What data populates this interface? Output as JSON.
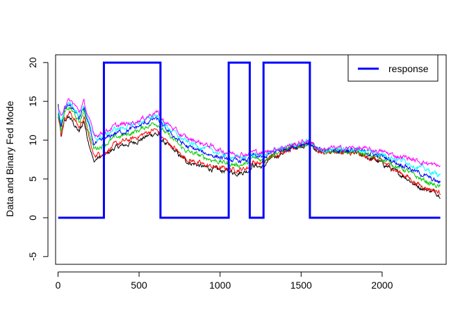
{
  "chart_data": {
    "type": "line",
    "title": "",
    "xlabel": "",
    "ylabel": "Data and Binary Fed Mode",
    "xlim": [
      -15,
      2395
    ],
    "ylim": [
      -6,
      21
    ],
    "x_ticks": [
      0,
      500,
      1000,
      1500,
      2000
    ],
    "y_ticks": [
      -5,
      0,
      5,
      10,
      15,
      20
    ],
    "grid": false,
    "legend": {
      "position": "top-right",
      "entries": [
        {
          "label": "response",
          "color": "#0000ff"
        }
      ]
    },
    "series": [
      {
        "name": "response",
        "color": "#0000ff",
        "width": 3,
        "x": [
          1,
          283,
          283,
          632,
          632,
          1053,
          1053,
          1183,
          1183,
          1268,
          1268,
          1554,
          1554,
          2359
        ],
        "y": [
          0,
          0,
          20,
          20,
          0,
          0,
          20,
          20,
          0,
          0,
          20,
          20,
          0,
          0
        ]
      },
      {
        "color": "#000000",
        "x": [
          1,
          20,
          40,
          70,
          100,
          130,
          160,
          180,
          200,
          220,
          240,
          260,
          283,
          300,
          350,
          400,
          450,
          500,
          550,
          600,
          632,
          640,
          700,
          750,
          800,
          850,
          900,
          950,
          1000,
          1053,
          1100,
          1150,
          1183,
          1200,
          1268,
          1300,
          1350,
          1400,
          1450,
          1500,
          1554,
          1600,
          1650,
          1700,
          1750,
          1800,
          1850,
          1900,
          1950,
          2000,
          2050,
          2100,
          2150,
          2200,
          2250,
          2300,
          2359
        ],
        "y": [
          14.6,
          10.2,
          12.5,
          13.0,
          12.0,
          11.0,
          12.5,
          10.5,
          9.0,
          7.2,
          7.6,
          7.8,
          8.0,
          8.2,
          9.0,
          9.3,
          9.6,
          10.0,
          10.5,
          10.9,
          10.4,
          10.0,
          9.0,
          8.0,
          7.2,
          6.9,
          6.5,
          6.3,
          6.1,
          6.0,
          5.8,
          5.9,
          6.2,
          6.8,
          6.5,
          7.4,
          8.0,
          8.5,
          9.0,
          9.3,
          9.6,
          8.6,
          8.4,
          8.6,
          8.4,
          8.3,
          8.2,
          7.8,
          7.5,
          7.0,
          6.4,
          5.7,
          5.2,
          4.3,
          3.8,
          3.5,
          3.0
        ]
      },
      {
        "color": "#ff0000",
        "x": [
          1,
          20,
          40,
          70,
          100,
          130,
          160,
          180,
          200,
          220,
          240,
          260,
          283,
          300,
          350,
          400,
          450,
          500,
          550,
          600,
          632,
          640,
          700,
          750,
          800,
          850,
          900,
          950,
          1000,
          1053,
          1100,
          1150,
          1183,
          1200,
          1268,
          1300,
          1350,
          1400,
          1450,
          1500,
          1554,
          1600,
          1650,
          1700,
          1750,
          1800,
          1850,
          1900,
          1950,
          2000,
          2050,
          2100,
          2150,
          2200,
          2250,
          2300,
          2359
        ],
        "y": [
          13.0,
          10.6,
          12.8,
          13.6,
          12.8,
          11.6,
          13.0,
          11.2,
          9.6,
          8.0,
          8.2,
          8.3,
          8.4,
          8.6,
          9.4,
          9.8,
          10.1,
          10.5,
          11.0,
          11.4,
          10.8,
          10.4,
          9.3,
          8.3,
          7.5,
          7.2,
          6.8,
          6.6,
          6.4,
          6.3,
          6.2,
          6.3,
          6.6,
          7.2,
          6.9,
          7.7,
          8.2,
          8.7,
          9.1,
          9.4,
          9.6,
          8.6,
          8.4,
          8.6,
          8.4,
          8.3,
          8.2,
          7.8,
          7.6,
          7.2,
          6.6,
          5.9,
          5.4,
          4.6,
          4.0,
          3.7,
          3.2
        ]
      },
      {
        "color": "#00cd00",
        "x": [
          1,
          20,
          40,
          70,
          100,
          130,
          160,
          180,
          200,
          220,
          240,
          260,
          283,
          300,
          350,
          400,
          450,
          500,
          550,
          600,
          632,
          640,
          700,
          750,
          800,
          850,
          900,
          950,
          1000,
          1053,
          1100,
          1150,
          1183,
          1200,
          1268,
          1300,
          1350,
          1400,
          1450,
          1500,
          1554,
          1600,
          1650,
          1700,
          1750,
          1800,
          1850,
          1900,
          1950,
          2000,
          2050,
          2100,
          2150,
          2200,
          2250,
          2300,
          2359
        ],
        "y": [
          13.6,
          11.2,
          13.4,
          14.2,
          13.4,
          12.2,
          13.7,
          12.0,
          10.4,
          8.9,
          9.0,
          9.2,
          9.4,
          9.6,
          10.3,
          10.6,
          10.9,
          11.3,
          11.8,
          12.3,
          11.8,
          11.4,
          10.3,
          9.3,
          8.5,
          8.2,
          7.8,
          7.5,
          7.2,
          7.0,
          6.8,
          6.9,
          7.2,
          7.7,
          7.4,
          8.0,
          8.4,
          8.8,
          9.1,
          9.4,
          9.6,
          8.7,
          8.5,
          8.7,
          8.6,
          8.5,
          8.4,
          8.1,
          7.9,
          7.6,
          7.1,
          6.5,
          6.1,
          5.4,
          4.9,
          4.4,
          3.9
        ]
      },
      {
        "color": "#0000ff",
        "x": [
          1,
          20,
          40,
          70,
          100,
          130,
          160,
          180,
          200,
          220,
          240,
          260,
          283,
          300,
          350,
          400,
          450,
          500,
          550,
          600,
          632,
          640,
          700,
          750,
          800,
          850,
          900,
          950,
          1000,
          1053,
          1100,
          1150,
          1183,
          1200,
          1268,
          1300,
          1350,
          1400,
          1450,
          1500,
          1554,
          1600,
          1650,
          1700,
          1750,
          1800,
          1850,
          1900,
          1950,
          2000,
          2050,
          2100,
          2150,
          2200,
          2250,
          2300,
          2359
        ],
        "y": [
          14.0,
          11.8,
          13.9,
          14.6,
          13.9,
          12.8,
          14.2,
          12.6,
          11.0,
          9.6,
          9.6,
          9.8,
          10.0,
          10.2,
          10.9,
          11.1,
          11.4,
          11.8,
          12.3,
          12.8,
          12.3,
          11.9,
          10.8,
          9.9,
          9.1,
          8.8,
          8.4,
          8.1,
          7.8,
          7.5,
          7.3,
          7.4,
          7.6,
          8.0,
          7.7,
          8.2,
          8.6,
          8.9,
          9.2,
          9.5,
          9.7,
          8.7,
          8.6,
          8.8,
          8.7,
          8.7,
          8.6,
          8.4,
          8.2,
          7.9,
          7.5,
          7.0,
          6.7,
          6.0,
          5.6,
          5.0,
          4.5
        ]
      },
      {
        "color": "#00ffff",
        "x": [
          1,
          20,
          40,
          70,
          100,
          130,
          160,
          180,
          200,
          220,
          240,
          260,
          283,
          300,
          350,
          400,
          450,
          500,
          550,
          600,
          632,
          640,
          700,
          750,
          800,
          850,
          900,
          950,
          1000,
          1053,
          1100,
          1150,
          1183,
          1200,
          1268,
          1300,
          1350,
          1400,
          1450,
          1500,
          1554,
          1600,
          1650,
          1700,
          1750,
          1800,
          1850,
          1900,
          1950,
          2000,
          2050,
          2100,
          2150,
          2200,
          2250,
          2300,
          2359
        ],
        "y": [
          14.2,
          12.3,
          14.3,
          14.9,
          14.3,
          13.3,
          14.6,
          13.1,
          11.6,
          10.3,
          10.2,
          10.4,
          10.6,
          10.8,
          11.4,
          11.6,
          11.9,
          12.3,
          12.7,
          13.3,
          12.8,
          12.3,
          11.3,
          10.4,
          9.7,
          9.4,
          9.0,
          8.7,
          8.3,
          8.0,
          7.8,
          7.8,
          8.0,
          8.3,
          8.0,
          8.4,
          8.8,
          9.1,
          9.3,
          9.6,
          9.8,
          8.8,
          8.7,
          8.9,
          8.8,
          8.9,
          8.8,
          8.6,
          8.5,
          8.2,
          7.9,
          7.5,
          7.3,
          6.7,
          6.4,
          5.9,
          5.5
        ]
      },
      {
        "color": "#ff00ff",
        "x": [
          1,
          20,
          40,
          70,
          100,
          130,
          160,
          180,
          200,
          220,
          240,
          260,
          283,
          300,
          350,
          400,
          450,
          500,
          550,
          600,
          632,
          640,
          700,
          750,
          800,
          850,
          900,
          950,
          1000,
          1053,
          1100,
          1150,
          1183,
          1200,
          1268,
          1300,
          1350,
          1400,
          1450,
          1500,
          1554,
          1600,
          1650,
          1700,
          1750,
          1800,
          1850,
          1900,
          1950,
          2000,
          2050,
          2100,
          2150,
          2200,
          2250,
          2300,
          2359
        ],
        "y": [
          14.4,
          12.7,
          14.6,
          15.1,
          14.6,
          13.7,
          14.9,
          13.5,
          12.1,
          10.8,
          10.7,
          10.9,
          11.0,
          11.2,
          11.8,
          12.0,
          12.2,
          12.6,
          13.0,
          13.7,
          13.2,
          12.7,
          11.7,
          10.8,
          10.2,
          9.9,
          9.5,
          9.2,
          8.7,
          8.4,
          8.2,
          8.2,
          8.3,
          8.6,
          8.3,
          8.6,
          8.9,
          9.2,
          9.4,
          9.7,
          9.9,
          8.9,
          8.8,
          9.0,
          8.9,
          9.0,
          9.0,
          8.8,
          8.7,
          8.5,
          8.2,
          7.9,
          7.8,
          7.4,
          7.2,
          6.9,
          6.6
        ]
      }
    ]
  }
}
